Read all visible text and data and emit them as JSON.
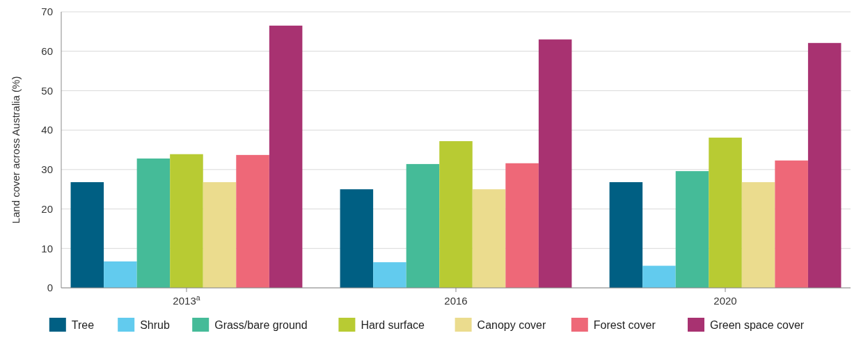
{
  "chart_data": {
    "type": "bar",
    "ylabel": "Land cover across Australia (%)",
    "categories": [
      "2013$^{a}$",
      "2016",
      "2020"
    ],
    "series": [
      {
        "name": "Tree",
        "color": "#005f83",
        "values": [
          26.8,
          25.0,
          26.8
        ]
      },
      {
        "name": "Shrub",
        "color": "#62cbee",
        "values": [
          6.7,
          6.5,
          5.6
        ]
      },
      {
        "name": "Grass/bare ground",
        "color": "#45bb98",
        "values": [
          32.8,
          31.4,
          29.6
        ]
      },
      {
        "name": "Hard surface",
        "color": "#b8cb33",
        "values": [
          33.9,
          37.2,
          38.1
        ]
      },
      {
        "name": "Canopy cover",
        "color": "#ebdc8e",
        "values": [
          26.8,
          25.0,
          26.8
        ]
      },
      {
        "name": "Forest cover",
        "color": "#ee6878",
        "values": [
          33.7,
          31.6,
          32.3
        ]
      },
      {
        "name": "Green space cover",
        "color": "#a83271",
        "values": [
          66.5,
          63.0,
          62.1
        ]
      }
    ],
    "ylim": [
      0,
      70
    ],
    "yticks": [
      0,
      10,
      20,
      30,
      40,
      50,
      60,
      70
    ],
    "grid": "y",
    "legend": "bottom"
  }
}
